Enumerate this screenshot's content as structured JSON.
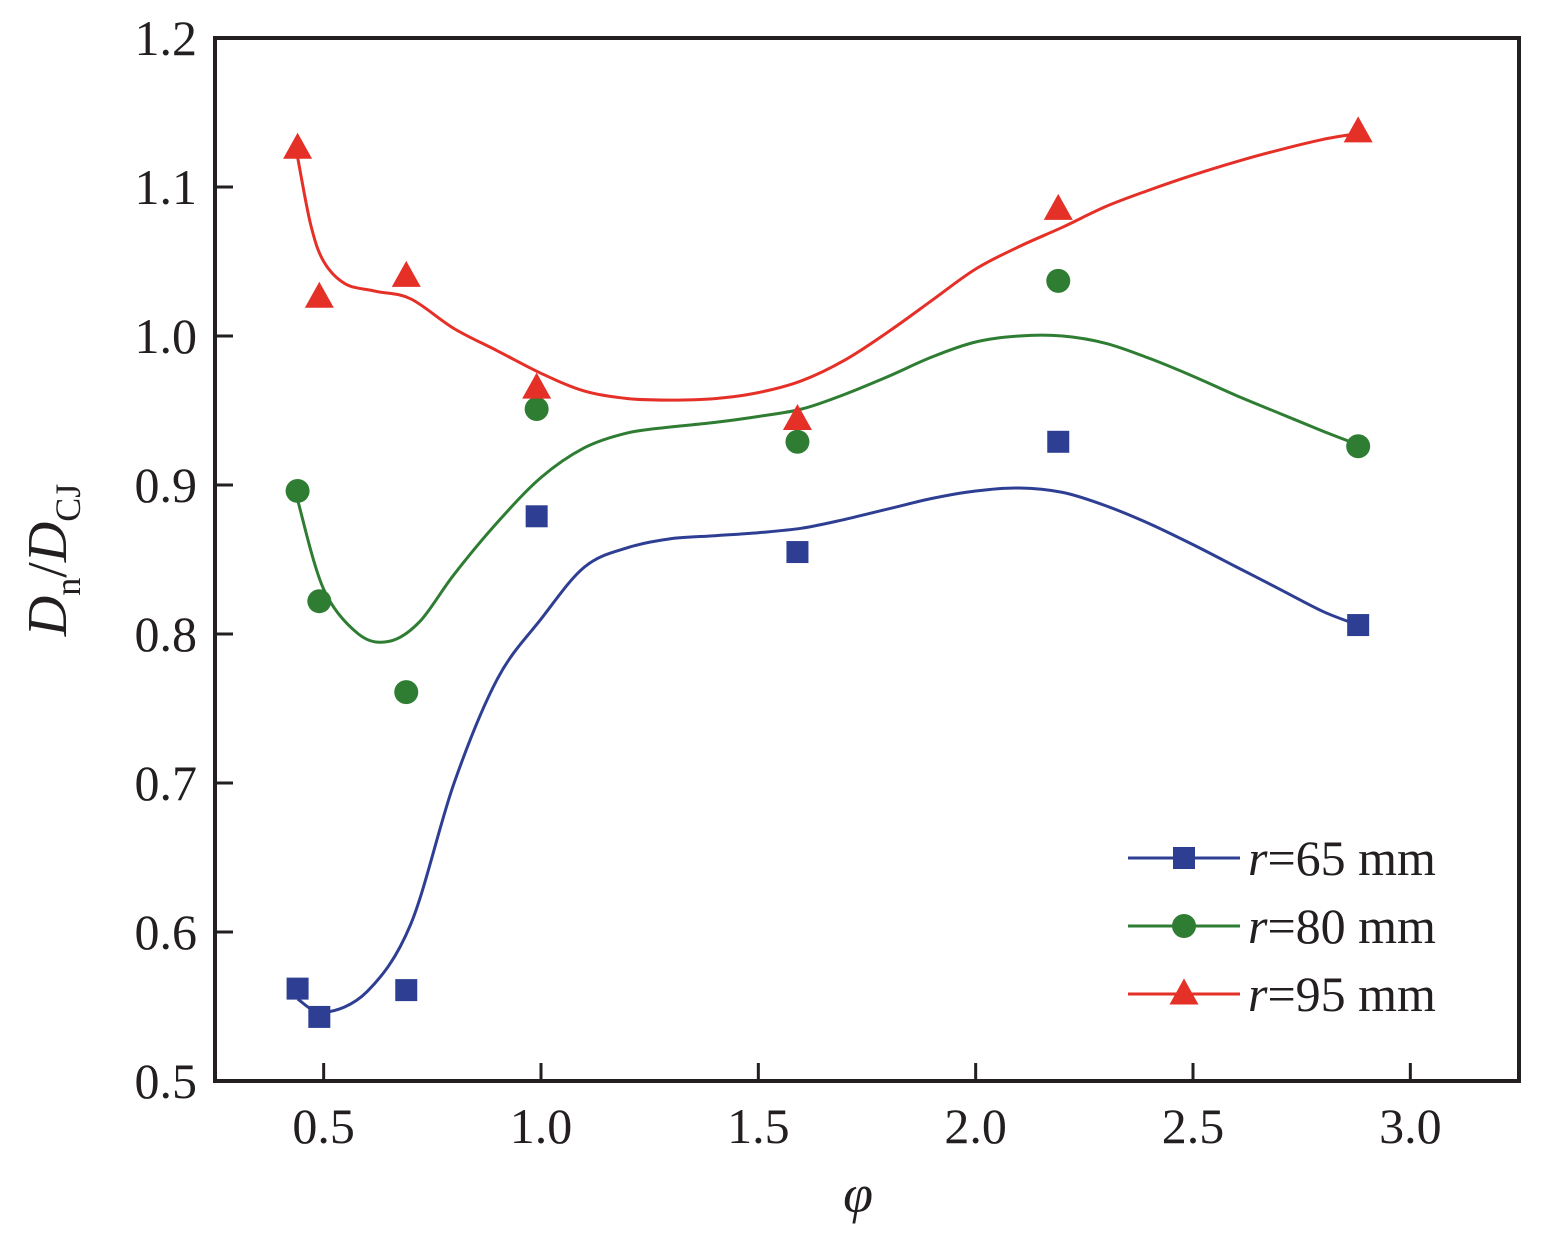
{
  "chart_data": {
    "type": "scatter",
    "xlabel": "φ",
    "ylabel": {
      "main": "D",
      "sub1": "n",
      "sep": "/",
      "main2": "D",
      "sub2": "CJ"
    },
    "xlim": [
      0.25,
      3.25
    ],
    "ylim": [
      0.5,
      1.2
    ],
    "x_ticks": [
      0.5,
      1.0,
      1.5,
      2.0,
      2.5,
      3.0
    ],
    "x_tick_labels": [
      "0.5",
      "1.0",
      "1.5",
      "2.0",
      "2.5",
      "3.0"
    ],
    "y_ticks": [
      0.5,
      0.6,
      0.7,
      0.8,
      0.9,
      1.0,
      1.1,
      1.2
    ],
    "y_tick_labels": [
      "0.5",
      "0.6",
      "0.7",
      "0.8",
      "0.9",
      "1.0",
      "1.1",
      "1.2"
    ],
    "legend_position": "bottom-right",
    "series": [
      {
        "name": "r=65 mm",
        "legend_italic": "r",
        "legend_rest": "=65 mm",
        "marker": "square",
        "color": "#2e3f93",
        "x": [
          0.44,
          0.49,
          0.69,
          0.99,
          1.59,
          2.19,
          2.88
        ],
        "y": [
          0.562,
          0.543,
          0.561,
          0.879,
          0.855,
          0.929,
          0.806
        ],
        "fit_x": [
          0.44,
          0.5,
          0.6,
          0.7,
          0.8,
          0.9,
          1.0,
          1.1,
          1.2,
          1.3,
          1.4,
          1.5,
          1.6,
          1.7,
          1.8,
          1.9,
          2.0,
          2.1,
          2.2,
          2.3,
          2.4,
          2.5,
          2.6,
          2.7,
          2.8,
          2.88
        ],
        "fit_y": [
          0.555,
          0.546,
          0.56,
          0.605,
          0.7,
          0.77,
          0.81,
          0.845,
          0.858,
          0.864,
          0.866,
          0.868,
          0.871,
          0.877,
          0.884,
          0.891,
          0.896,
          0.898,
          0.895,
          0.886,
          0.874,
          0.86,
          0.845,
          0.83,
          0.815,
          0.806
        ]
      },
      {
        "name": "r=80 mm",
        "legend_italic": "r",
        "legend_rest": "=80 mm",
        "marker": "circle",
        "color": "#2e7d32",
        "x": [
          0.44,
          0.49,
          0.69,
          0.99,
          1.59,
          2.19,
          2.88
        ],
        "y": [
          0.896,
          0.822,
          0.761,
          0.951,
          0.929,
          1.037,
          0.926
        ],
        "fit_x": [
          0.44,
          0.5,
          0.58,
          0.65,
          0.72,
          0.8,
          0.9,
          1.0,
          1.1,
          1.2,
          1.3,
          1.4,
          1.5,
          1.6,
          1.7,
          1.8,
          1.9,
          2.0,
          2.1,
          2.2,
          2.3,
          2.4,
          2.5,
          2.6,
          2.7,
          2.8,
          2.88
        ],
        "fit_y": [
          0.89,
          0.83,
          0.8,
          0.795,
          0.808,
          0.84,
          0.875,
          0.905,
          0.925,
          0.935,
          0.939,
          0.942,
          0.946,
          0.951,
          0.961,
          0.973,
          0.986,
          0.996,
          1.0,
          1.0,
          0.995,
          0.985,
          0.973,
          0.96,
          0.948,
          0.936,
          0.927
        ]
      },
      {
        "name": "r=95 mm",
        "legend_italic": "r",
        "legend_rest": "=95 mm",
        "marker": "triangle",
        "color": "#e53028",
        "x": [
          0.44,
          0.49,
          0.69,
          0.99,
          1.59,
          2.19,
          2.88
        ],
        "y": [
          1.126,
          1.026,
          1.04,
          0.965,
          0.944,
          1.085,
          1.137
        ],
        "fit_x": [
          0.44,
          0.47,
          0.5,
          0.55,
          0.62,
          0.7,
          0.8,
          0.9,
          1.0,
          1.1,
          1.2,
          1.3,
          1.4,
          1.5,
          1.6,
          1.7,
          1.8,
          1.9,
          2.0,
          2.1,
          2.2,
          2.3,
          2.4,
          2.5,
          2.6,
          2.7,
          2.8,
          2.88
        ],
        "fit_y": [
          1.12,
          1.075,
          1.05,
          1.035,
          1.03,
          1.025,
          1.005,
          0.99,
          0.975,
          0.963,
          0.958,
          0.957,
          0.958,
          0.962,
          0.97,
          0.984,
          1.003,
          1.024,
          1.045,
          1.06,
          1.073,
          1.087,
          1.098,
          1.108,
          1.117,
          1.125,
          1.132,
          1.136
        ]
      }
    ]
  }
}
